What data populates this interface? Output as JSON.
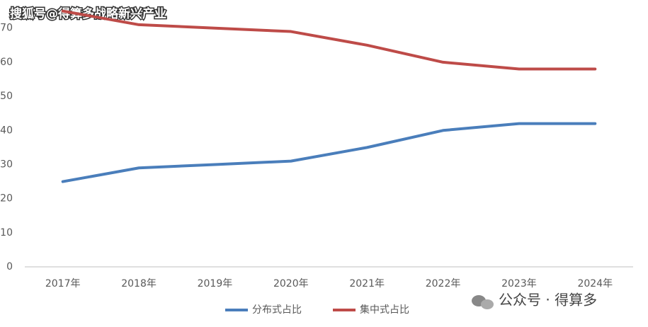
{
  "chart_data": {
    "type": "line",
    "categories": [
      "2017年",
      "2018年",
      "2019年",
      "2020年",
      "2021年",
      "2022年",
      "2023年",
      "2024年"
    ],
    "series": [
      {
        "name": "分布式占比",
        "color": "#4a7ebb",
        "values": [
          25,
          29,
          30,
          31,
          35,
          40,
          42,
          42
        ]
      },
      {
        "name": "集中式占比",
        "color": "#be4b48",
        "values": [
          75,
          71,
          70,
          69,
          65,
          60,
          58,
          58
        ]
      }
    ],
    "ylim": [
      0,
      77
    ],
    "yticks": [
      0,
      10,
      20,
      30,
      40,
      50,
      60,
      70
    ],
    "grid": false,
    "legend": "bottom",
    "annotations": [
      "搜狐号@得算多战略新兴产业",
      "公众号 · 得算多"
    ]
  }
}
